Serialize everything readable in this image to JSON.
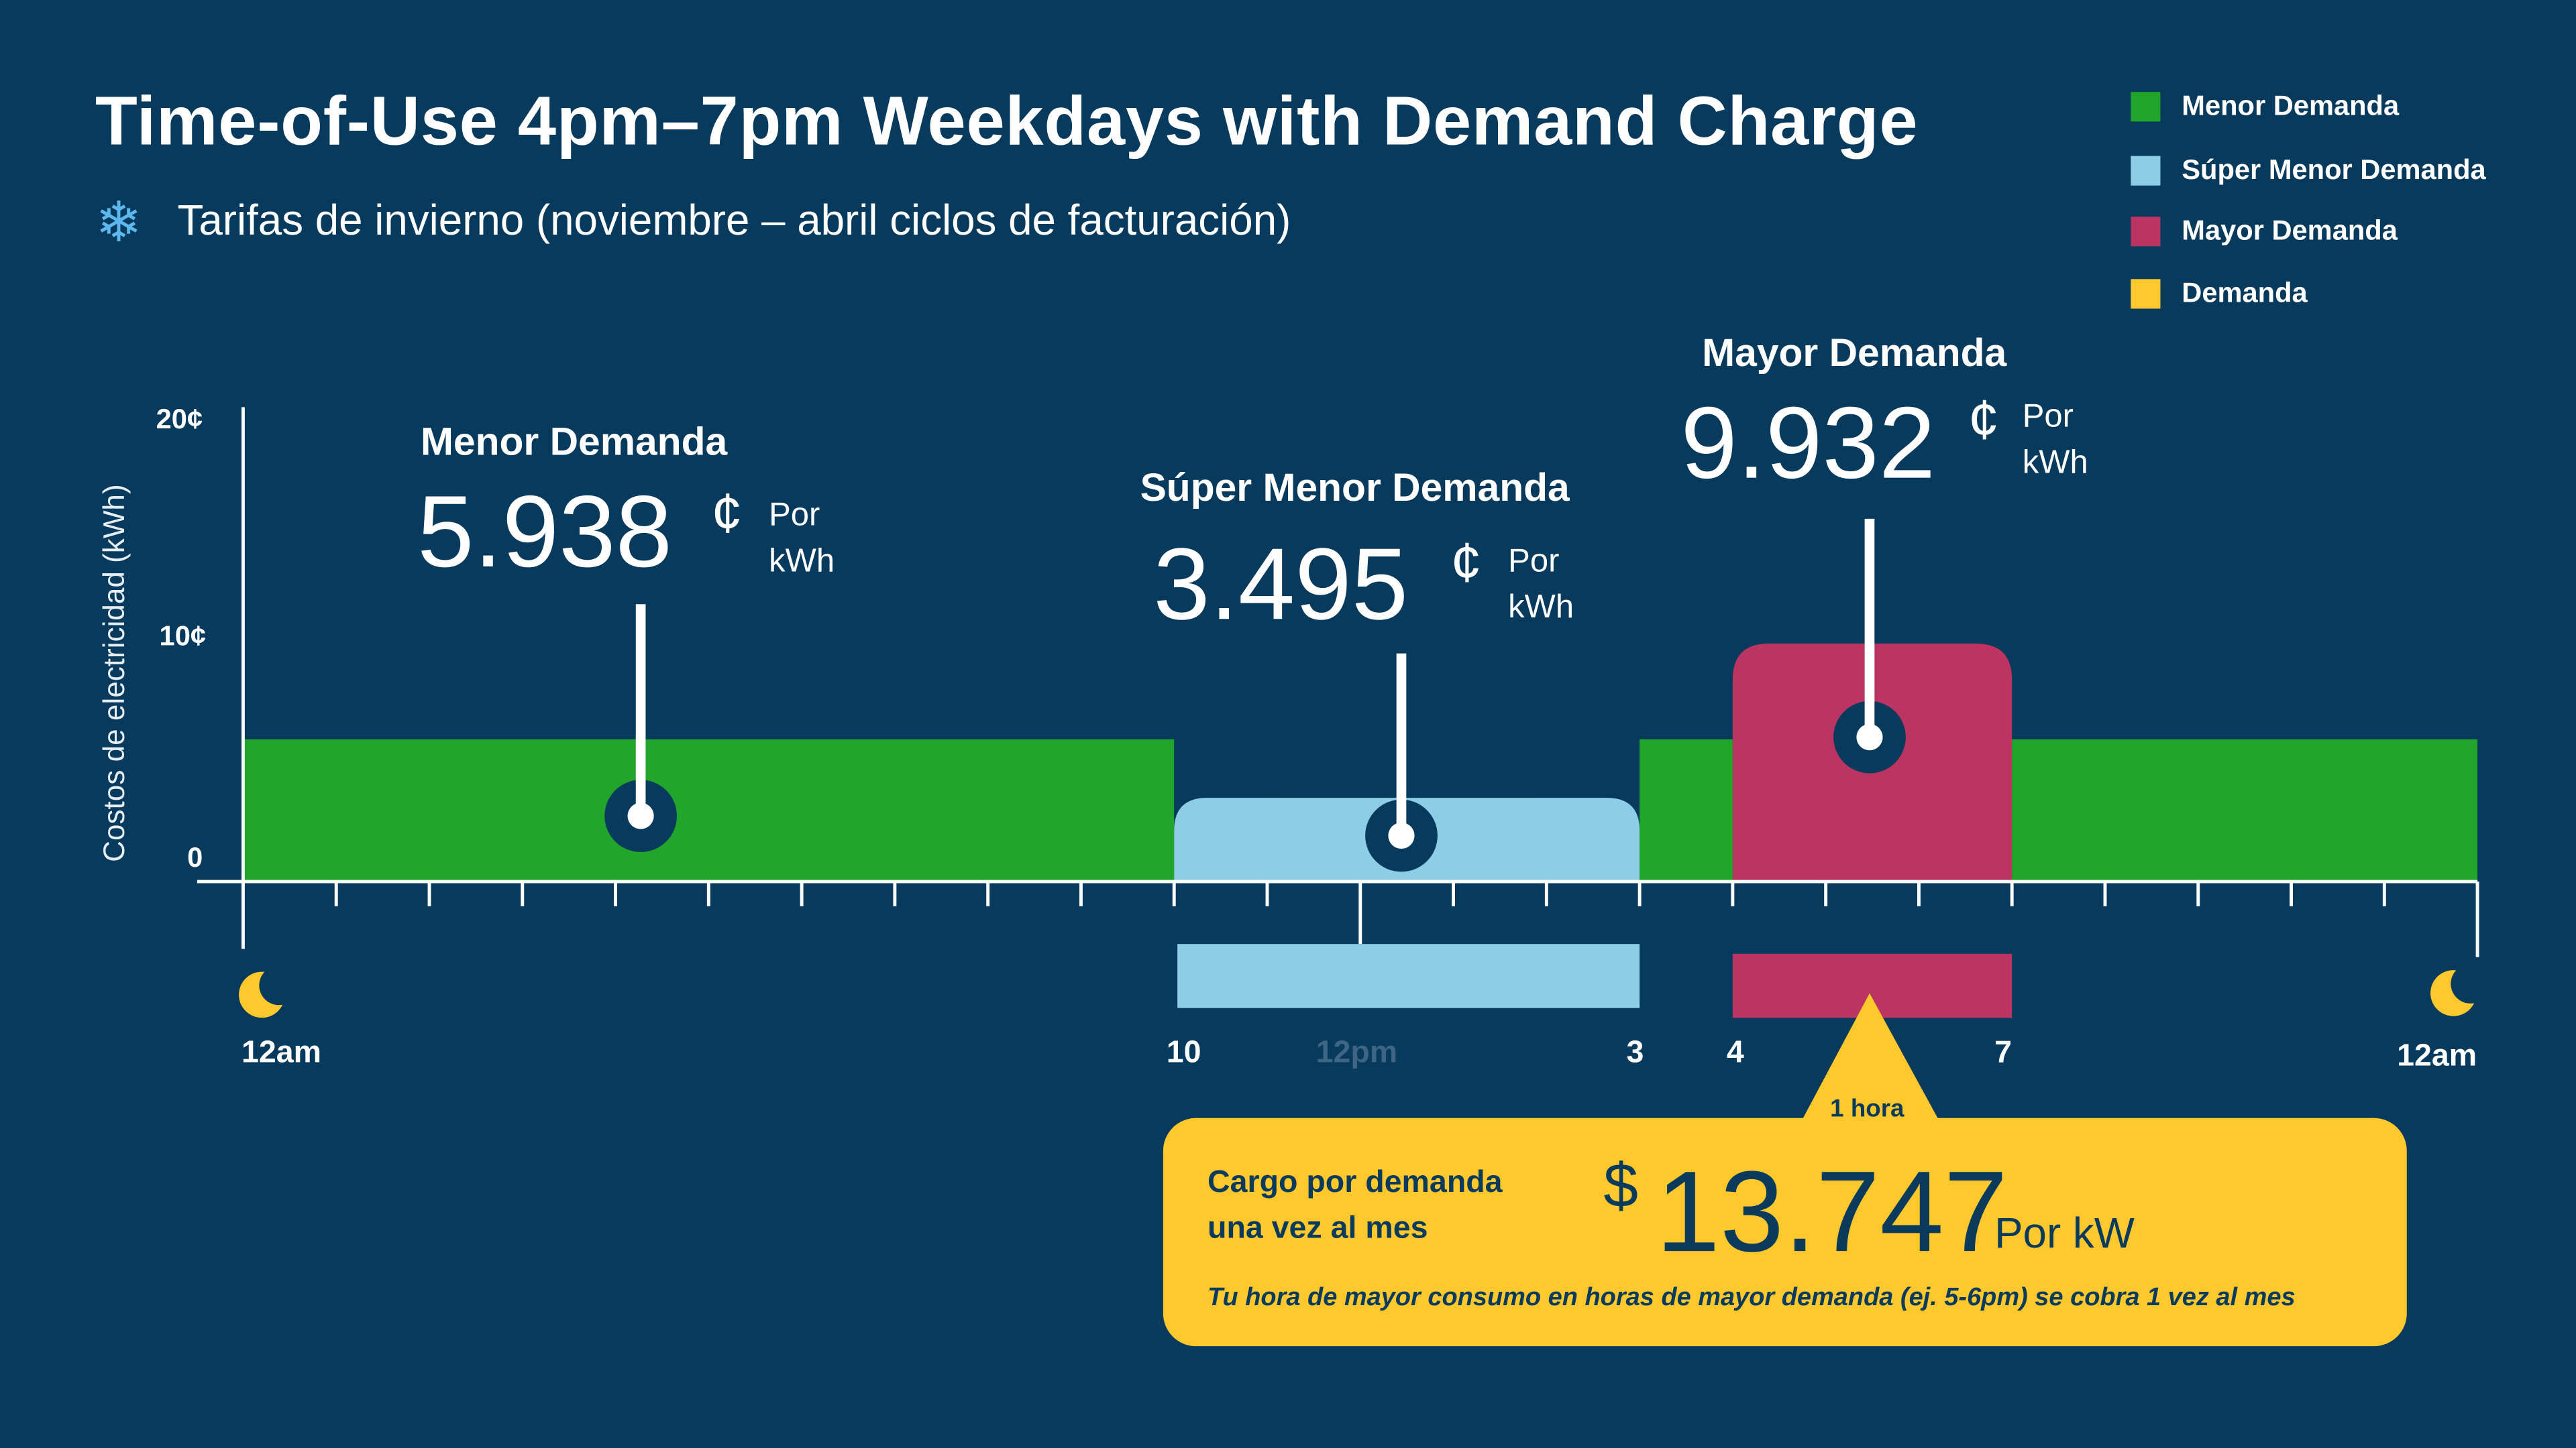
{
  "title": "Time-of-Use 4pm–7pm Weekdays with Demand Charge",
  "subtitle": "Tarifas de invierno (noviembre – abril ciclos de facturación)",
  "subtitle_icon": "snowflake-icon",
  "colors": {
    "background": "#073a5c",
    "menor": "#21a52a",
    "super_menor": "#8ecde6",
    "mayor": "#bc3461",
    "demanda": "#ffc92e"
  },
  "legend": [
    {
      "label": "Menor Demanda",
      "color": "#21a52a"
    },
    {
      "label": "Súper Menor Demanda",
      "color": "#8ecde6"
    },
    {
      "label": "Mayor Demanda",
      "color": "#bc3461"
    },
    {
      "label": "Demanda",
      "color": "#ffc92e"
    }
  ],
  "callouts": {
    "menor": {
      "label": "Menor Demanda",
      "value": "5.938",
      "cent": "¢",
      "unit1": "Por",
      "unit2": "kWh"
    },
    "super": {
      "label": "Súper Menor Demanda",
      "value": "3.495",
      "cent": "¢",
      "unit1": "Por",
      "unit2": "kWh"
    },
    "mayor": {
      "label": "Mayor Demanda",
      "value": "9.932",
      "cent": "¢",
      "unit1": "Por",
      "unit2": "kWh"
    }
  },
  "demand": {
    "window_label": "1 hora",
    "title1": "Cargo por demanda",
    "title2": "una vez al mes",
    "currency": "$",
    "value": "13.747",
    "unit": "Por kW",
    "note": "Tu hora de mayor consumo en horas de mayor demanda (ej. 5-6pm) se cobra 1 vez al mes"
  },
  "x_labels": {
    "start": "12am",
    "h10": "10",
    "h12": "12pm",
    "h15": "3",
    "h16": "4",
    "h19": "7",
    "end": "12am"
  },
  "chart_data": {
    "type": "bar",
    "ylabel": "Costos de electricidad (kWh)",
    "y_ticks": [
      "0",
      "10¢",
      "20¢"
    ],
    "ylim": [
      0,
      20
    ],
    "xlim_hours": [
      0,
      24
    ],
    "segments": [
      {
        "start": 0,
        "end": 10,
        "period": "Menor Demanda",
        "value": 5.938
      },
      {
        "start": 10,
        "end": 15,
        "period": "Súper Menor Demanda",
        "value": 3.495
      },
      {
        "start": 15,
        "end": 16,
        "period": "Menor Demanda",
        "value": 5.938
      },
      {
        "start": 16,
        "end": 19,
        "period": "Mayor Demanda",
        "value": 9.932
      },
      {
        "start": 19,
        "end": 24,
        "period": "Menor Demanda",
        "value": 5.938
      }
    ],
    "demand_charge_per_kw": 13.747
  }
}
